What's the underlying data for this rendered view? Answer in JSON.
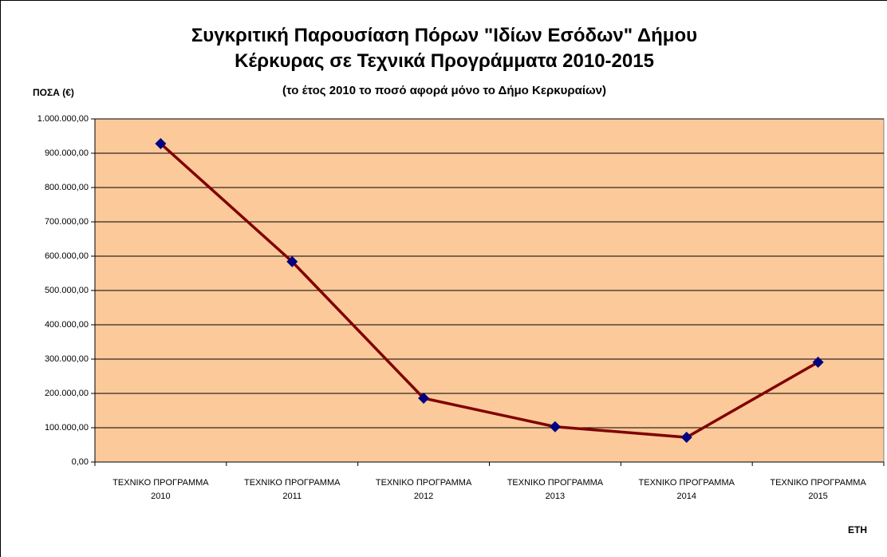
{
  "chart_data": {
    "type": "line",
    "title": "Συγκριτική Παρουσίαση Πόρων \"Ιδίων Εσόδων\" Δήμου\nΚέρκυρας σε Τεχνικά Προγράμματα 2010-2015",
    "subtitle": "(το έτος 2010 το ποσό αφορά μόνο το Δήμο Κερκυραίων)",
    "y_label": "ΠΟΣΑ (€)",
    "x_label": "ΕΤΗ",
    "categories": [
      "ΤΕΧΝΙΚΟ ΠΡΟΓΡΑΜΜΑ\n2010",
      "ΤΕΧΝΙΚΟ ΠΡΟΓΡΑΜΜΑ\n2011",
      "ΤΕΧΝΙΚΟ ΠΡΟΓΡΑΜΜΑ\n2012",
      "ΤΕΧΝΙΚΟ ΠΡΟΓΡΑΜΜΑ\n2013",
      "ΤΕΧΝΙΚΟ ΠΡΟΓΡΑΜΜΑ\n2014",
      "ΤΕΧΝΙΚΟ ΠΡΟΓΡΑΜΜΑ\n2015"
    ],
    "values": [
      928000,
      584000,
      186000,
      103000,
      72000,
      291000
    ],
    "color": "#800000",
    "marker_color": "#000080",
    "background": "#fbc99a",
    "grid": true,
    "ylim": [
      0,
      1000000
    ],
    "yticks": [
      {
        "value": 0,
        "label": "0,00"
      },
      {
        "value": 100000,
        "label": "100.000,00"
      },
      {
        "value": 200000,
        "label": "200.000,00"
      },
      {
        "value": 300000,
        "label": "300.000,00"
      },
      {
        "value": 400000,
        "label": "400.000,00"
      },
      {
        "value": 500000,
        "label": "500.000,00"
      },
      {
        "value": 600000,
        "label": "600.000,00"
      },
      {
        "value": 700000,
        "label": "700.000,00"
      },
      {
        "value": 800000,
        "label": "800.000,00"
      },
      {
        "value": 900000,
        "label": "900.000,00"
      },
      {
        "value": 1000000,
        "label": "1.000.000,00"
      }
    ]
  }
}
